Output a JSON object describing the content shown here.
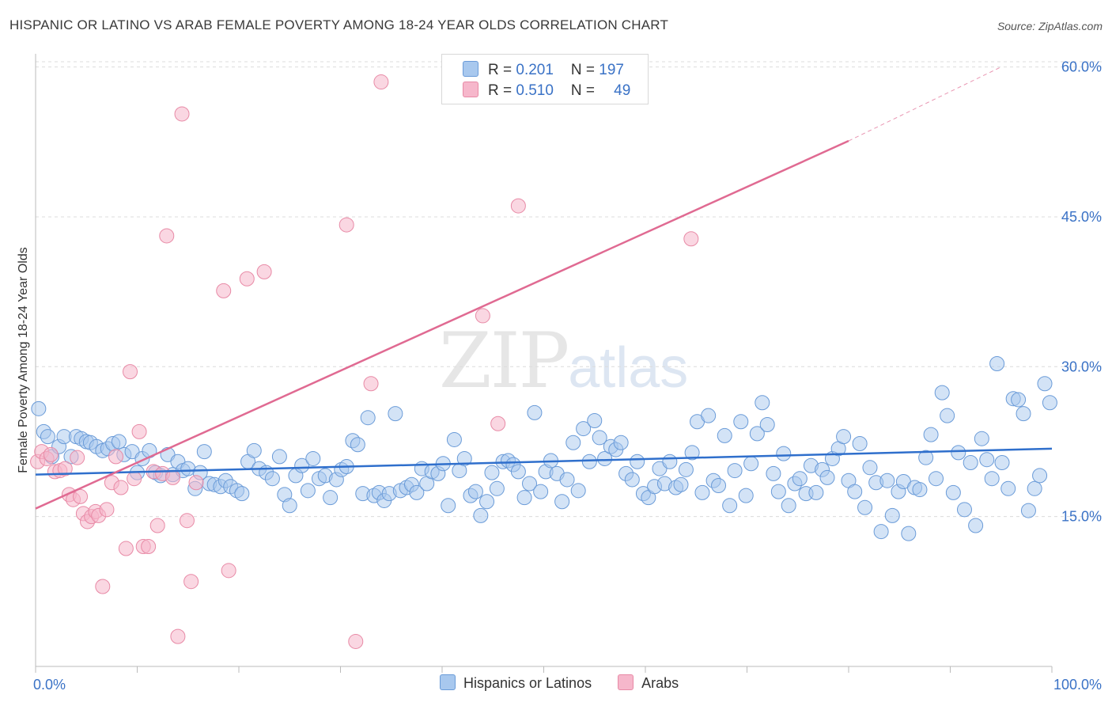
{
  "title": "HISPANIC OR LATINO VS ARAB FEMALE POVERTY AMONG 18-24 YEAR OLDS CORRELATION CHART",
  "source": "Source: ZipAtlas.com",
  "watermark": {
    "zip": "ZIP",
    "atlas": "atlas"
  },
  "legend": {
    "rows": [
      {
        "r_label": "R = ",
        "r_value": "0.201",
        "n_label": "N = ",
        "n_value": "197"
      },
      {
        "r_label": "R = ",
        "r_value": "0.510",
        "n_label": "N = ",
        "n_value": "49"
      }
    ]
  },
  "bottom_legend": [
    "Hispanics or Latinos",
    "Arabs"
  ],
  "colors": {
    "blue_fill": "#a8c8ee",
    "blue_stroke": "#6a9bd8",
    "blue_line": "#2f6fcc",
    "pink_fill": "#f6b7cb",
    "pink_stroke": "#e88aa6",
    "pink_line": "#e06a92",
    "tick_label": "#3a72c6",
    "grid": "#dcdcdc"
  },
  "chart_data": {
    "type": "scatter",
    "title": "HISPANIC OR LATINO VS ARAB FEMALE POVERTY AMONG 18-24 YEAR OLDS CORRELATION CHART",
    "xlabel": "",
    "ylabel": "Female Poverty Among 18-24 Year Olds",
    "xlim": [
      0,
      100
    ],
    "ylim": [
      0,
      61
    ],
    "x_tick_labels": [
      "0.0%",
      "100.0%"
    ],
    "y_ticks": [
      15,
      30,
      45,
      60
    ],
    "y_tick_labels": [
      "15.0%",
      "30.0%",
      "45.0%",
      "60.0%"
    ],
    "grid": true,
    "legend_position": "top-center",
    "series": [
      {
        "name": "Hispanics or Latinos",
        "color": "#a8c8ee",
        "r": 0.201,
        "n": 197,
        "trend": {
          "x": [
            0,
            100
          ],
          "y": [
            19.2,
            21.8
          ],
          "dashed_extension": false
        },
        "points": [
          [
            0.3,
            25.8
          ],
          [
            0.8,
            23.5
          ],
          [
            1.2,
            23.0
          ],
          [
            1.6,
            21.0
          ],
          [
            2.3,
            22.0
          ],
          [
            2.8,
            23.0
          ],
          [
            3.5,
            21.0
          ],
          [
            4.0,
            23.0
          ],
          [
            4.5,
            22.8
          ],
          [
            5.0,
            22.5
          ],
          [
            5.4,
            22.4
          ],
          [
            6.0,
            22.0
          ],
          [
            6.6,
            21.6
          ],
          [
            7.1,
            21.8
          ],
          [
            7.6,
            22.3
          ],
          [
            8.2,
            22.5
          ],
          [
            8.7,
            21.2
          ],
          [
            9.5,
            21.5
          ],
          [
            10.0,
            19.4
          ],
          [
            10.5,
            20.8
          ],
          [
            11.2,
            21.6
          ],
          [
            11.8,
            19.4
          ],
          [
            12.3,
            19.1
          ],
          [
            13.0,
            21.2
          ],
          [
            13.5,
            19.2
          ],
          [
            14.0,
            20.5
          ],
          [
            14.5,
            19.6
          ],
          [
            15.0,
            19.8
          ],
          [
            15.7,
            17.8
          ],
          [
            16.2,
            19.4
          ],
          [
            16.6,
            21.5
          ],
          [
            17.1,
            18.3
          ],
          [
            17.6,
            18.2
          ],
          [
            18.2,
            18.0
          ],
          [
            18.7,
            18.6
          ],
          [
            19.2,
            18.0
          ],
          [
            19.8,
            17.6
          ],
          [
            20.3,
            17.3
          ],
          [
            20.9,
            20.5
          ],
          [
            21.5,
            21.6
          ],
          [
            22.0,
            19.8
          ],
          [
            22.7,
            19.4
          ],
          [
            23.3,
            18.8
          ],
          [
            24.0,
            21.0
          ],
          [
            24.5,
            17.2
          ],
          [
            25.0,
            16.1
          ],
          [
            25.6,
            19.1
          ],
          [
            26.2,
            20.1
          ],
          [
            26.8,
            17.6
          ],
          [
            27.3,
            20.8
          ],
          [
            27.9,
            18.8
          ],
          [
            28.5,
            19.1
          ],
          [
            29.0,
            16.9
          ],
          [
            29.6,
            18.7
          ],
          [
            30.1,
            19.7
          ],
          [
            30.6,
            20.0
          ],
          [
            31.2,
            22.6
          ],
          [
            31.7,
            22.2
          ],
          [
            32.2,
            17.3
          ],
          [
            32.7,
            24.9
          ],
          [
            33.3,
            17.1
          ],
          [
            33.8,
            17.4
          ],
          [
            34.3,
            16.6
          ],
          [
            34.8,
            17.3
          ],
          [
            35.4,
            25.3
          ],
          [
            35.9,
            17.6
          ],
          [
            36.5,
            17.9
          ],
          [
            37.0,
            18.2
          ],
          [
            37.5,
            17.4
          ],
          [
            38.0,
            19.8
          ],
          [
            38.5,
            18.3
          ],
          [
            39.0,
            19.5
          ],
          [
            39.6,
            19.3
          ],
          [
            40.1,
            20.3
          ],
          [
            40.6,
            16.1
          ],
          [
            41.2,
            22.7
          ],
          [
            41.7,
            19.6
          ],
          [
            42.2,
            20.8
          ],
          [
            42.8,
            17.1
          ],
          [
            43.3,
            17.5
          ],
          [
            43.8,
            15.1
          ],
          [
            44.4,
            16.5
          ],
          [
            44.9,
            19.4
          ],
          [
            45.4,
            17.8
          ],
          [
            46.0,
            20.5
          ],
          [
            46.5,
            20.6
          ],
          [
            47.0,
            20.2
          ],
          [
            47.5,
            19.5
          ],
          [
            48.1,
            16.9
          ],
          [
            48.6,
            18.3
          ],
          [
            49.1,
            25.4
          ],
          [
            49.7,
            17.5
          ],
          [
            50.2,
            19.5
          ],
          [
            50.7,
            20.6
          ],
          [
            51.3,
            19.3
          ],
          [
            51.8,
            16.5
          ],
          [
            52.3,
            18.7
          ],
          [
            52.9,
            22.4
          ],
          [
            53.4,
            17.6
          ],
          [
            53.9,
            23.8
          ],
          [
            54.5,
            20.5
          ],
          [
            55.0,
            24.6
          ],
          [
            55.5,
            22.9
          ],
          [
            56.0,
            20.8
          ],
          [
            56.6,
            22.0
          ],
          [
            57.1,
            21.7
          ],
          [
            57.6,
            22.4
          ],
          [
            58.1,
            19.3
          ],
          [
            58.7,
            18.7
          ],
          [
            59.2,
            20.5
          ],
          [
            59.8,
            17.3
          ],
          [
            60.3,
            16.9
          ],
          [
            60.9,
            18.0
          ],
          [
            61.4,
            19.8
          ],
          [
            61.9,
            18.3
          ],
          [
            62.4,
            20.5
          ],
          [
            63.0,
            17.9
          ],
          [
            63.5,
            18.2
          ],
          [
            64.0,
            19.7
          ],
          [
            64.6,
            21.4
          ],
          [
            65.1,
            24.5
          ],
          [
            65.6,
            17.4
          ],
          [
            66.2,
            25.1
          ],
          [
            66.7,
            18.6
          ],
          [
            67.2,
            18.1
          ],
          [
            67.8,
            23.1
          ],
          [
            68.3,
            16.1
          ],
          [
            68.8,
            19.6
          ],
          [
            69.4,
            24.5
          ],
          [
            69.9,
            17.1
          ],
          [
            70.4,
            20.3
          ],
          [
            71.0,
            23.3
          ],
          [
            71.5,
            26.4
          ],
          [
            72.0,
            24.2
          ],
          [
            72.6,
            19.3
          ],
          [
            73.1,
            17.5
          ],
          [
            73.6,
            21.3
          ],
          [
            74.1,
            16.1
          ],
          [
            74.7,
            18.3
          ],
          [
            75.2,
            18.8
          ],
          [
            75.8,
            17.3
          ],
          [
            76.3,
            20.1
          ],
          [
            76.8,
            17.4
          ],
          [
            77.4,
            19.7
          ],
          [
            77.9,
            18.9
          ],
          [
            78.4,
            20.8
          ],
          [
            79.0,
            21.8
          ],
          [
            79.5,
            23.0
          ],
          [
            80.0,
            18.6
          ],
          [
            80.6,
            17.5
          ],
          [
            81.1,
            22.3
          ],
          [
            81.6,
            15.9
          ],
          [
            82.1,
            19.9
          ],
          [
            82.7,
            18.4
          ],
          [
            83.2,
            13.5
          ],
          [
            83.8,
            18.6
          ],
          [
            84.3,
            15.1
          ],
          [
            84.9,
            17.5
          ],
          [
            85.4,
            18.5
          ],
          [
            85.9,
            13.3
          ],
          [
            86.5,
            17.9
          ],
          [
            87.0,
            17.7
          ],
          [
            87.6,
            20.9
          ],
          [
            88.1,
            23.2
          ],
          [
            88.6,
            18.8
          ],
          [
            89.2,
            27.4
          ],
          [
            89.7,
            25.1
          ],
          [
            90.3,
            17.4
          ],
          [
            90.8,
            21.4
          ],
          [
            91.4,
            15.7
          ],
          [
            92.0,
            20.4
          ],
          [
            92.5,
            14.1
          ],
          [
            93.1,
            22.8
          ],
          [
            93.6,
            20.7
          ],
          [
            94.1,
            18.8
          ],
          [
            94.6,
            30.3
          ],
          [
            95.1,
            20.4
          ],
          [
            95.7,
            17.8
          ],
          [
            96.2,
            26.8
          ],
          [
            96.7,
            26.7
          ],
          [
            97.2,
            25.3
          ],
          [
            97.7,
            15.6
          ],
          [
            98.3,
            17.8
          ],
          [
            98.8,
            19.1
          ],
          [
            99.3,
            28.3
          ],
          [
            99.8,
            26.4
          ]
        ]
      },
      {
        "name": "Arabs",
        "color": "#f6b7cb",
        "r": 0.51,
        "n": 49,
        "trend": {
          "x": [
            0,
            80
          ],
          "y": [
            15.8,
            52.6
          ],
          "dashed_extension": [
            80,
            95,
            52.6,
            60.0
          ]
        },
        "points": [
          [
            0.2,
            20.5
          ],
          [
            0.6,
            21.5
          ],
          [
            1.1,
            20.8
          ],
          [
            1.5,
            21.2
          ],
          [
            1.9,
            19.5
          ],
          [
            2.4,
            19.6
          ],
          [
            2.9,
            19.8
          ],
          [
            3.3,
            17.2
          ],
          [
            3.7,
            16.7
          ],
          [
            4.1,
            20.9
          ],
          [
            4.4,
            17.0
          ],
          [
            4.7,
            15.3
          ],
          [
            5.1,
            14.5
          ],
          [
            5.5,
            15.0
          ],
          [
            5.9,
            15.5
          ],
          [
            6.2,
            15.1
          ],
          [
            6.6,
            8.0
          ],
          [
            7.0,
            15.7
          ],
          [
            7.5,
            18.4
          ],
          [
            7.9,
            21.0
          ],
          [
            8.4,
            17.9
          ],
          [
            8.9,
            11.8
          ],
          [
            9.3,
            29.5
          ],
          [
            9.7,
            18.8
          ],
          [
            10.2,
            23.5
          ],
          [
            10.6,
            12.0
          ],
          [
            11.1,
            12.0
          ],
          [
            11.6,
            19.5
          ],
          [
            12.0,
            14.1
          ],
          [
            12.5,
            19.3
          ],
          [
            12.9,
            43.1
          ],
          [
            13.5,
            18.9
          ],
          [
            14.0,
            3.0
          ],
          [
            14.4,
            55.3
          ],
          [
            14.9,
            14.6
          ],
          [
            15.3,
            8.5
          ],
          [
            15.8,
            18.4
          ],
          [
            18.5,
            37.6
          ],
          [
            19.0,
            9.6
          ],
          [
            20.8,
            38.8
          ],
          [
            22.5,
            39.5
          ],
          [
            30.6,
            44.2
          ],
          [
            31.5,
            2.5
          ],
          [
            33.0,
            28.3
          ],
          [
            34.0,
            58.5
          ],
          [
            44.0,
            35.1
          ],
          [
            45.5,
            24.3
          ],
          [
            47.5,
            46.1
          ],
          [
            64.5,
            42.8
          ]
        ]
      }
    ]
  }
}
